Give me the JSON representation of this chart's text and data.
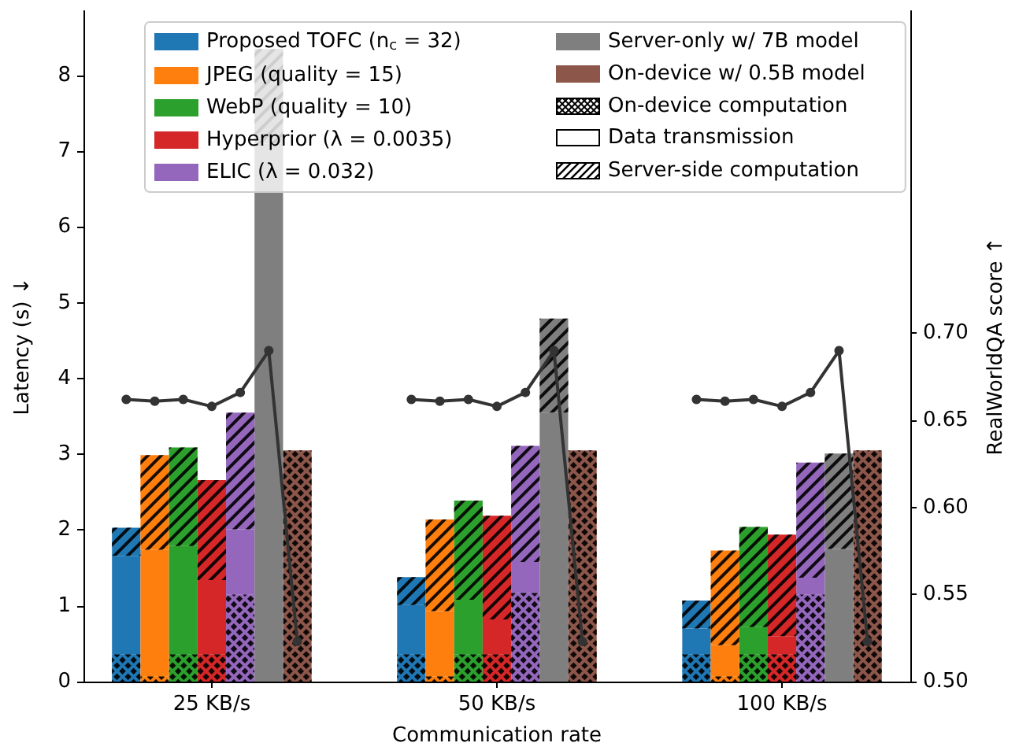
{
  "chart_data": {
    "type": "bar",
    "stacked": true,
    "xlabel": "Communication rate",
    "ylabel": "Latency (s) ↓",
    "y2label": "RealWorldQA score ↑",
    "categories": [
      null,
      null,
      null,
      null,
      "25 KB/s",
      null,
      null,
      null,
      null,
      null,
      null,
      null,
      null,
      null,
      "50 KB/s",
      null,
      null,
      null,
      null,
      null,
      null,
      null,
      null,
      null,
      "100 KB/s",
      null,
      null,
      null,
      null
    ],
    "ylim": [
      0,
      8.85
    ],
    "yticks": [
      0,
      1,
      2,
      3,
      4,
      5,
      6,
      7,
      8
    ],
    "y2lim": [
      0.5,
      0.885
    ],
    "y2ticks": [
      {
        "value": 0.5,
        "label": "0.50"
      },
      {
        "value": 0.55,
        "label": "0.55"
      },
      {
        "value": 0.6,
        "label": "0.60"
      },
      {
        "value": 0.65,
        "label": "0.65"
      },
      {
        "value": 0.7,
        "label": "0.70"
      }
    ],
    "legend": "top",
    "annotations": [
      "On-device computation",
      "Data transmission",
      "Server-side computation"
    ],
    "series": [
      {
        "name": "Proposed TOFC (n$_{c}$ = 32)",
        "color": "#1f77b4",
        "values": [
          null,
          null,
          null,
          null,
          null,
          null,
          null,
          null,
          null,
          null,
          null,
          null,
          null,
          null,
          null,
          null,
          null,
          null,
          null,
          null,
          null,
          null,
          null,
          null,
          null,
          null,
          null,
          null,
          null
        ]
      },
      {
        "name": "JPEG (quality = 15)",
        "color": "#ff7f0e",
        "values": [
          null,
          null,
          null,
          null,
          null,
          null,
          null,
          null,
          null,
          null,
          null,
          null,
          null,
          null,
          null,
          null,
          null,
          null,
          null,
          null,
          null,
          null,
          null,
          null,
          null,
          null,
          null,
          null,
          null
        ]
      },
      {
        "name": "WebP (quality = 10)",
        "color": "#2ca02c",
        "values": [
          null,
          null,
          null,
          null,
          null,
          null,
          null,
          null,
          null,
          null,
          null,
          null,
          null,
          null,
          null,
          null,
          null,
          null,
          null,
          null,
          null,
          null,
          null,
          null,
          null,
          null,
          null,
          null,
          null
        ]
      },
      {
        "name": "Hyperprior (λ = 0.0035)",
        "color": "#d62728",
        "values": [
          null,
          null,
          null,
          null,
          null,
          null,
          null,
          null,
          null,
          null,
          null,
          null,
          null,
          null,
          null,
          null,
          null,
          null,
          null,
          null,
          null,
          null,
          null,
          null,
          null,
          null,
          null,
          null,
          null
        ]
      },
      {
        "name": "ELIC (λ = 0.032)",
        "color": "#9467bd",
        "values": [
          null,
          null,
          null,
          null,
          null,
          null,
          null,
          null,
          null,
          null,
          null,
          null,
          null,
          null,
          null,
          null,
          null,
          null,
          null,
          null,
          null,
          null,
          null,
          null,
          null,
          null,
          null,
          null,
          null
        ]
      },
      {
        "name": "Server-only w/ 7B model",
        "color": "#7f7f7f",
        "values": [
          null,
          null,
          null,
          null,
          null,
          null,
          null,
          null,
          null,
          null,
          null,
          null,
          null,
          null,
          null,
          null,
          null,
          null,
          null,
          null,
          null,
          null,
          null,
          null,
          null,
          null,
          null,
          null,
          null
        ]
      },
      {
        "name": "On-device w/ 0.5B model",
        "color": "#8c564b",
        "values": [
          null,
          null,
          null,
          null,
          null,
          null,
          null,
          null,
          null,
          null,
          null,
          null,
          null,
          null,
          null,
          null,
          null,
          null,
          null,
          null,
          null,
          null,
          null,
          null,
          null,
          null,
          null,
          null,
          null
        ]
      },
      {
        "colors": [
          null,
          "#1f77b4",
          "#ff7f0e",
          "#2ca02c",
          "#d62728",
          "#9467bd",
          "#7f7f7f",
          "#8c564b",
          null,
          null,
          null,
          "#1f77b4",
          "#ff7f0e",
          "#2ca02c",
          "#d62728",
          "#9467bd",
          "#7f7f7f",
          "#8c564b",
          null,
          null,
          null,
          "#1f77b4",
          "#ff7f0e",
          "#2ca02c",
          "#d62728",
          "#9467bd",
          "#7f7f7f",
          "#8c564b",
          null
        ],
        "values": [
          null,
          0.36,
          0.07,
          0.36,
          0.36,
          1.15,
          0,
          3.05,
          null,
          null,
          null,
          0.36,
          0.07,
          0.36,
          0.36,
          1.17,
          0,
          3.05,
          null,
          null,
          null,
          0.36,
          0.07,
          0.36,
          0.36,
          1.15,
          0,
          3.05,
          null
        ]
      },
      {
        "colors": [
          null,
          "#1f77b4",
          "#ff7f0e",
          "#2ca02c",
          "#d62728",
          "#9467bd",
          "#7f7f7f",
          "#8c564b",
          null,
          null,
          null,
          "#1f77b4",
          "#ff7f0e",
          "#2ca02c",
          "#d62728",
          "#9467bd",
          "#7f7f7f",
          "#8c564b",
          null,
          null,
          null,
          "#1f77b4",
          "#ff7f0e",
          "#2ca02c",
          "#d62728",
          "#9467bd",
          "#7f7f7f",
          "#8c564b",
          null
        ],
        "values": [
          null,
          1.3,
          1.67,
          1.43,
          0.98,
          0.86,
          7.1,
          0,
          null,
          null,
          null,
          0.65,
          0.86,
          0.72,
          0.46,
          0.41,
          3.55,
          0,
          null,
          null,
          null,
          0.34,
          0.41,
          0.36,
          0.24,
          0.22,
          1.75,
          0,
          null
        ]
      },
      {
        "colors": [
          null,
          "#1f77b4",
          "#ff7f0e",
          "#2ca02c",
          "#d62728",
          "#9467bd",
          "#7f7f7f",
          "#8c564b",
          null,
          null,
          null,
          "#1f77b4",
          "#ff7f0e",
          "#2ca02c",
          "#d62728",
          "#9467bd",
          "#7f7f7f",
          "#8c564b",
          null,
          null,
          null,
          "#1f77b4",
          "#ff7f0e",
          "#2ca02c",
          "#d62728",
          "#9467bd",
          "#7f7f7f",
          "#8c564b",
          null
        ],
        "values": [
          null,
          0.37,
          1.25,
          1.3,
          1.32,
          1.54,
          1.25,
          0,
          null,
          null,
          null,
          0.37,
          1.21,
          1.31,
          1.37,
          1.53,
          1.24,
          0,
          null,
          null,
          null,
          0.37,
          1.25,
          1.32,
          1.34,
          1.52,
          1.26,
          0,
          null
        ]
      },
      {
        "type": "line",
        "axis": "y2",
        "color": "#333333",
        "marker": "circle",
        "values": [
          null,
          0.662,
          0.661,
          0.662,
          0.658,
          0.666,
          0.69,
          0.523,
          null,
          null,
          null,
          0.662,
          0.661,
          0.662,
          0.658,
          0.666,
          0.69,
          0.523,
          null,
          null,
          null,
          0.662,
          0.661,
          0.662,
          0.658,
          0.666,
          0.69,
          0.523,
          null
        ]
      }
    ]
  }
}
